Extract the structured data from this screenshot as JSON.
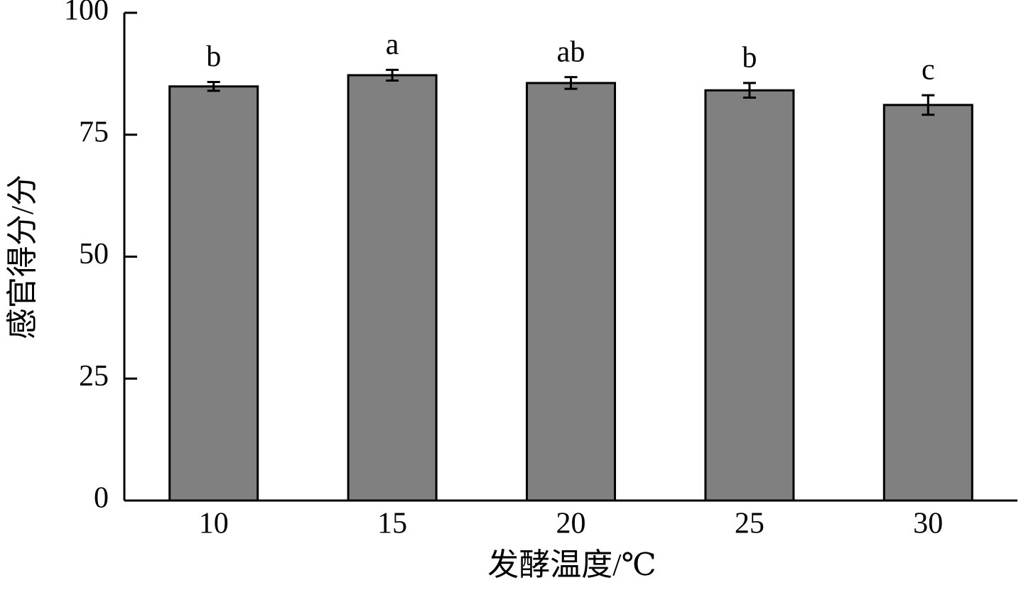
{
  "chart_data": {
    "type": "bar",
    "x_label": "发酵温度/℃",
    "y_label": "感官得分/分",
    "categories": [
      "10",
      "15",
      "20",
      "25",
      "30"
    ],
    "values": [
      84.9,
      87.2,
      85.6,
      84.1,
      81.1
    ],
    "errors": [
      0.9,
      1.1,
      1.2,
      1.5,
      2.0
    ],
    "significance": [
      "b",
      "a",
      "ab",
      "b",
      "c"
    ],
    "color": "#808080",
    "ylim": [
      0,
      100
    ],
    "yticks": [
      0,
      25,
      50,
      75,
      100
    ]
  }
}
